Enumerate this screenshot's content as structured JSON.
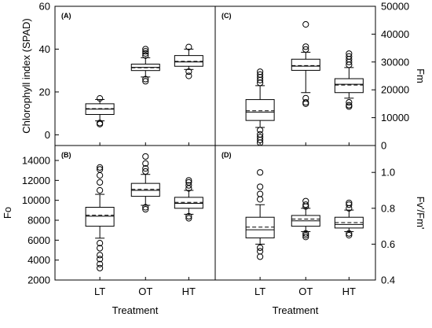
{
  "chart_data": [
    {
      "panel_label": "(A)",
      "type": "box",
      "ylabel": "Chlorophyll index (SPAD)",
      "ylabel_side": "left",
      "ylim": [
        -5,
        60
      ],
      "yticks": [
        0,
        20,
        40,
        60
      ],
      "categories": [
        "LT",
        "OT",
        "HT"
      ],
      "boxes": [
        {
          "category": "LT",
          "whisker_low": 6.5,
          "q1": 9.5,
          "median": 12,
          "mean": 12.2,
          "q3": 14.5,
          "whisker_high": 16.5,
          "outliers": [
            17,
            5.5,
            5
          ]
        },
        {
          "category": "OT",
          "whisker_low": 27,
          "q1": 30,
          "median": 31.5,
          "mean": 31.3,
          "q3": 33,
          "whisker_high": 36,
          "outliers": [
            37,
            38,
            39,
            40,
            26,
            25
          ]
        },
        {
          "category": "HT",
          "whisker_low": 30.5,
          "q1": 32,
          "median": 34,
          "mean": 34.3,
          "q3": 37,
          "whisker_high": 40,
          "outliers": [
            41,
            29.5,
            27.5
          ]
        }
      ]
    },
    {
      "panel_label": "(C)",
      "type": "box",
      "ylabel": "Fm",
      "ylabel_side": "right",
      "ylim": [
        0,
        50000
      ],
      "yticks": [
        0,
        10000,
        20000,
        30000,
        40000,
        50000
      ],
      "categories": [
        "LT",
        "OT",
        "HT"
      ],
      "boxes": [
        {
          "category": "LT",
          "whisker_low": 6500,
          "q1": 9000,
          "median": 12000,
          "mean": 12500,
          "q3": 16500,
          "whisker_high": 21500,
          "outliers": [
            22500,
            23500,
            24500,
            25500,
            26500,
            5500,
            4000,
            3000,
            2000,
            1000
          ]
        },
        {
          "category": "OT",
          "whisker_low": 19000,
          "q1": 27000,
          "median": 28500,
          "mean": 28700,
          "q3": 31000,
          "whisker_high": 33500,
          "outliers": [
            34500,
            35500,
            43500,
            17000,
            15500,
            15000
          ]
        },
        {
          "category": "HT",
          "whisker_low": 17000,
          "q1": 19000,
          "median": 22000,
          "mean": 21700,
          "q3": 24000,
          "whisker_high": 28000,
          "outliers": [
            29000,
            30000,
            31000,
            32000,
            33000,
            15500,
            14500,
            14000
          ]
        }
      ]
    },
    {
      "panel_label": "(B)",
      "type": "box",
      "ylabel": "Fo",
      "ylabel_side": "left",
      "xlabel": "Treatment",
      "ylim": [
        2000,
        15500
      ],
      "yticks": [
        2000,
        4000,
        6000,
        8000,
        10000,
        12000,
        14000
      ],
      "categories": [
        "LT",
        "OT",
        "HT"
      ],
      "boxes": [
        {
          "category": "LT",
          "whisker_low": 6200,
          "q1": 7400,
          "median": 8400,
          "mean": 8500,
          "q3": 9300,
          "whisker_high": 10600,
          "outliers": [
            11000,
            11800,
            12500,
            13100,
            13300,
            5700,
            5200,
            4500,
            4100,
            3600,
            3200
          ]
        },
        {
          "category": "OT",
          "whisker_low": 9500,
          "q1": 10400,
          "median": 11000,
          "mean": 11100,
          "q3": 11700,
          "whisker_high": 12600,
          "outliers": [
            12900,
            13200,
            13700,
            14400,
            9300,
            9100
          ]
        },
        {
          "category": "HT",
          "whisker_low": 8600,
          "q1": 9200,
          "median": 9700,
          "mean": 9800,
          "q3": 10300,
          "whisker_high": 11000,
          "outliers": [
            11200,
            11500,
            11800,
            12000,
            8400,
            8200
          ]
        }
      ]
    },
    {
      "panel_label": "(D)",
      "type": "box",
      "ylabel": "Fv'/Fm'",
      "ylabel_side": "right",
      "xlabel": "Treatment",
      "ylim": [
        0.4,
        1.15
      ],
      "yticks": [
        0.4,
        0.6,
        0.8,
        1.0
      ],
      "yticklabels": [
        "0.4",
        "0.6",
        "0.8",
        "1.0"
      ],
      "categories": [
        "LT",
        "OT",
        "HT"
      ],
      "boxes": [
        {
          "category": "LT",
          "whisker_low": 0.6,
          "q1": 0.635,
          "median": 0.68,
          "mean": 0.695,
          "q3": 0.75,
          "whisker_high": 0.82,
          "outliers": [
            0.85,
            0.88,
            0.92,
            1.0,
            0.58,
            0.56,
            0.53
          ]
        },
        {
          "category": "OT",
          "whisker_low": 0.67,
          "q1": 0.7,
          "median": 0.73,
          "mean": 0.74,
          "q3": 0.76,
          "whisker_high": 0.8,
          "outliers": [
            0.81,
            0.82,
            0.84,
            0.66,
            0.65,
            0.64
          ]
        },
        {
          "category": "HT",
          "whisker_low": 0.67,
          "q1": 0.69,
          "median": 0.71,
          "mean": 0.72,
          "q3": 0.75,
          "whisker_high": 0.79,
          "outliers": [
            0.8,
            0.82,
            0.83,
            0.66,
            0.65
          ]
        }
      ]
    }
  ]
}
